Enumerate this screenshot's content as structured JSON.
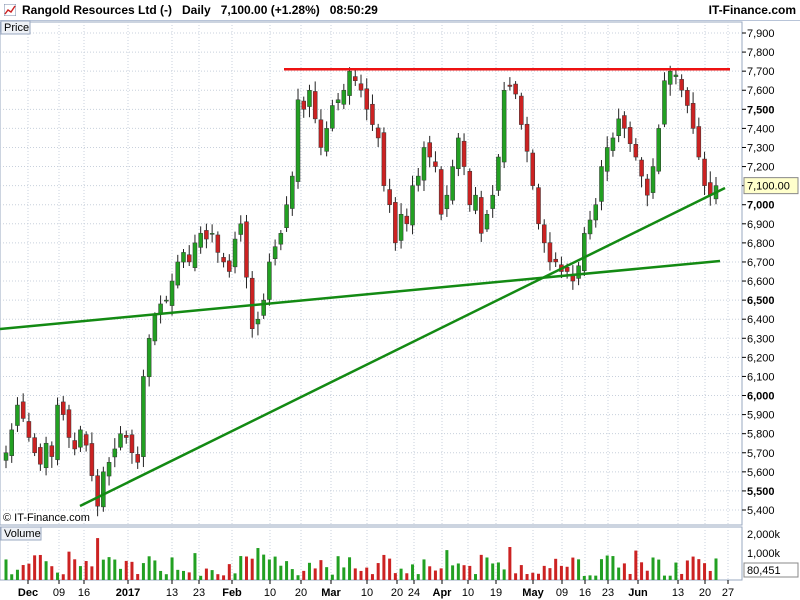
{
  "header": {
    "title": "Rangold Resources Ltd (-)   Daily   7,100.00 (+1.28%)   08:50:29",
    "brand": "IT-Finance.com"
  },
  "panels": {
    "price_label": "Price",
    "volume_label": "Volume",
    "watermark": "© IT-Finance.com",
    "current_price": "7,100.00",
    "current_volume": "80,451"
  },
  "colors": {
    "up": "#22a022",
    "down": "#cc2222",
    "trendline": "#138a13",
    "resistance": "#ee1111",
    "grid": "#c8d0dc",
    "price_badge": "#ffffcc"
  },
  "chart_data": {
    "type": "candlestick",
    "title": "Rangold Resources Ltd (-)",
    "ylabel": "Price",
    "ylim": [
      5380,
      7900
    ],
    "price_ticks": [
      "7,900",
      "7,800",
      "7,700",
      "7,600",
      "7,500",
      "7,400",
      "7,300",
      "7,200",
      "7,100",
      "7,000",
      "6,900",
      "6,800",
      "6,700",
      "6,600",
      "6,500",
      "6,400",
      "6,300",
      "6,200",
      "6,100",
      "6,000",
      "5,900",
      "5,800",
      "5,700",
      "5,600",
      "5,500",
      "5,400"
    ],
    "volume_ticks": [
      "2,000k",
      "1,000k"
    ],
    "date_labels": [
      {
        "label": "Dec",
        "bold": true
      },
      {
        "label": "09",
        "bold": false
      },
      {
        "label": "16",
        "bold": false
      },
      {
        "label": "2017",
        "bold": true
      },
      {
        "label": "13",
        "bold": false
      },
      {
        "label": "23",
        "bold": false
      },
      {
        "label": "Feb",
        "bold": true
      },
      {
        "label": "10",
        "bold": false
      },
      {
        "label": "20",
        "bold": false
      },
      {
        "label": "Mar",
        "bold": true
      },
      {
        "label": "10",
        "bold": false
      },
      {
        "label": "20",
        "bold": false
      },
      {
        "label": "24",
        "bold": false
      },
      {
        "label": "Apr",
        "bold": true
      },
      {
        "label": "10",
        "bold": false
      },
      {
        "label": "19",
        "bold": false
      },
      {
        "label": "May",
        "bold": true
      },
      {
        "label": "09",
        "bold": false
      },
      {
        "label": "16",
        "bold": false
      },
      {
        "label": "23",
        "bold": false
      },
      {
        "label": "Jun",
        "bold": true
      },
      {
        "label": "13",
        "bold": false
      },
      {
        "label": "20",
        "bold": false
      },
      {
        "label": "27",
        "bold": false
      }
    ],
    "close": [
      5700,
      5820,
      5950,
      5880,
      5780,
      5700,
      5640,
      5750,
      5680,
      5950,
      5900,
      5780,
      5720,
      5820,
      5740,
      5580,
      5420,
      5600,
      5650,
      5720,
      5800,
      5780,
      5700,
      5650,
      6100,
      6300,
      6420,
      6480,
      6500,
      6600,
      6700,
      6750,
      6700,
      6800,
      6850,
      6820,
      6850,
      6750,
      6700,
      6650,
      6820,
      6900,
      6620,
      6350,
      6400,
      6500,
      6700,
      6780,
      6850,
      7000,
      7150,
      7550,
      7500,
      7600,
      7450,
      7300,
      7400,
      7520,
      7550,
      7600,
      7700,
      7650,
      7600,
      7500,
      7420,
      7350,
      7100,
      7000,
      6800,
      6950,
      6900,
      7100,
      7150,
      7300,
      7250,
      7200,
      6950,
      7050,
      7200,
      7350,
      7200,
      7000,
      7050,
      6850,
      6950,
      7050,
      7250,
      7600,
      7620,
      7580,
      7420,
      7280,
      7100,
      6900,
      6800,
      6700,
      6700,
      6650,
      6650,
      6600,
      6680,
      6850,
      6920,
      7000,
      7200,
      7300,
      7350,
      7450,
      7400,
      7320,
      7250,
      7150,
      7050,
      7200,
      7400,
      7650,
      7700,
      7680,
      7600,
      7520,
      7400,
      7250,
      7100,
      7050,
      7100
    ]
  }
}
